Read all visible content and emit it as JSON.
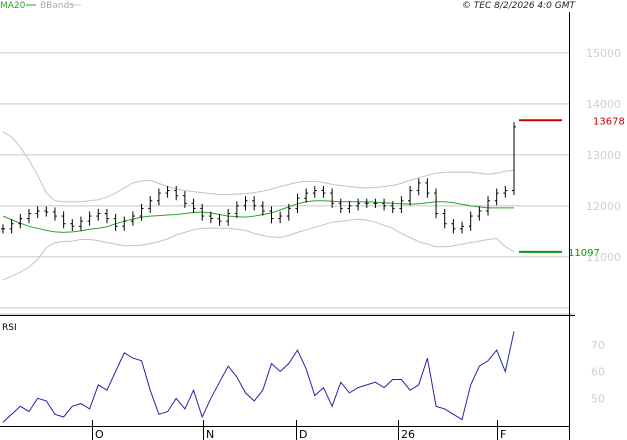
{
  "legend": {
    "ma_label": "MA20",
    "bbands_label": "BBands"
  },
  "footer_text": "© TEC 8/2/2026 4:0 GMT",
  "rsi_title": "RSI",
  "colors": {
    "price": "#000000",
    "ma": "#2aa52a",
    "bbands": "#c4c4c4",
    "rsi": "#2424a8",
    "resistance": "#cc0000",
    "support": "#009900",
    "grid": "#c8c8c8"
  },
  "chart_data": [
    {
      "type": "line",
      "title": "",
      "x_ticks": [
        "O",
        "N",
        "D",
        "26",
        "F"
      ],
      "y_ticks": [
        "15000",
        "14000",
        "13000",
        "12000",
        "11000"
      ],
      "ylim": [
        9900,
        15800
      ],
      "grid": true,
      "legend_position": "top-left",
      "levels": [
        {
          "name": "resistance",
          "label": "13678",
          "value": 13678
        },
        {
          "name": "support",
          "label": "11097",
          "value": 11097
        }
      ],
      "series": [
        {
          "name": "MA20",
          "values": [
            11800,
            11730,
            11660,
            11600,
            11560,
            11520,
            11490,
            11480,
            11490,
            11510,
            11540,
            11560,
            11590,
            11650,
            11700,
            11740,
            11780,
            11800,
            11810,
            11820,
            11830,
            11850,
            11870,
            11880,
            11860,
            11830,
            11800,
            11790,
            11780,
            11800,
            11830,
            11860,
            11920,
            11980,
            12040,
            12080,
            12100,
            12100,
            12090,
            12080,
            12080,
            12080,
            12080,
            12070,
            12060,
            12050,
            12040,
            12030,
            12040,
            12060,
            12080,
            12080,
            12060,
            12030,
            12000,
            11980,
            11960,
            11960,
            11960,
            11960
          ]
        },
        {
          "name": "BBands",
          "values": [
            13450,
            13350,
            13150,
            12900,
            12600,
            12250,
            12100,
            12080,
            12080,
            12080,
            12100,
            12120,
            12170,
            12250,
            12350,
            12450,
            12490,
            12500,
            12440,
            12380,
            12330,
            12300,
            12280,
            12260,
            12240,
            12220,
            12220,
            12230,
            12240,
            12260,
            12290,
            12330,
            12380,
            12420,
            12460,
            12480,
            12480,
            12460,
            12420,
            12400,
            12380,
            12360,
            12350,
            12360,
            12380,
            12400,
            12440,
            12500,
            12550,
            12600,
            12640,
            12660,
            12660,
            12660,
            12660,
            12640,
            12620,
            12640,
            12680,
            12700
          ]
        },
        {
          "name": "BBands-lower",
          "values": [
            10550,
            10620,
            10700,
            10800,
            10950,
            11180,
            11280,
            11300,
            11310,
            11340,
            11340,
            11320,
            11280,
            11250,
            11220,
            11220,
            11230,
            11260,
            11300,
            11350,
            11430,
            11480,
            11530,
            11560,
            11560,
            11560,
            11560,
            11540,
            11520,
            11460,
            11420,
            11390,
            11380,
            11420,
            11480,
            11530,
            11580,
            11630,
            11680,
            11700,
            11720,
            11740,
            11720,
            11680,
            11620,
            11560,
            11460,
            11380,
            11300,
            11250,
            11200,
            11200,
            11220,
            11250,
            11280,
            11310,
            11340,
            11360,
            11200,
            11100
          ]
        },
        {
          "name": "Price",
          "values": [
            11550,
            11650,
            11750,
            11850,
            11900,
            11880,
            11800,
            11650,
            11600,
            11700,
            11800,
            11850,
            11750,
            11600,
            11700,
            11800,
            11950,
            12100,
            12250,
            12300,
            12200,
            12050,
            11950,
            11800,
            11750,
            11700,
            11850,
            12000,
            12100,
            12000,
            11900,
            11750,
            11800,
            11950,
            12150,
            12250,
            12300,
            12250,
            12050,
            11950,
            12000,
            12050,
            12050,
            12050,
            12000,
            11950,
            12100,
            12300,
            12450,
            12250,
            11850,
            11650,
            11550,
            11600,
            11800,
            11900,
            12100,
            12250,
            12300,
            13550
          ]
        }
      ]
    },
    {
      "type": "line",
      "title": "RSI",
      "y_ticks": [
        "70",
        "60",
        "50"
      ],
      "ylim": [
        40,
        80
      ],
      "grid": false,
      "series": [
        {
          "name": "",
          "values": [
            41,
            44,
            47,
            45,
            50,
            49,
            44,
            43,
            47,
            48,
            46,
            55,
            53,
            60,
            67,
            65,
            64,
            53,
            44,
            45,
            50,
            46,
            53,
            43,
            50,
            56,
            62,
            58,
            52,
            49,
            53,
            63,
            60,
            63,
            68,
            61,
            51,
            54,
            47,
            56,
            52,
            54,
            55,
            56,
            54,
            57,
            57,
            53,
            55,
            65,
            47,
            46,
            44,
            42,
            55,
            62,
            64,
            68,
            60,
            75
          ]
        }
      ]
    }
  ]
}
